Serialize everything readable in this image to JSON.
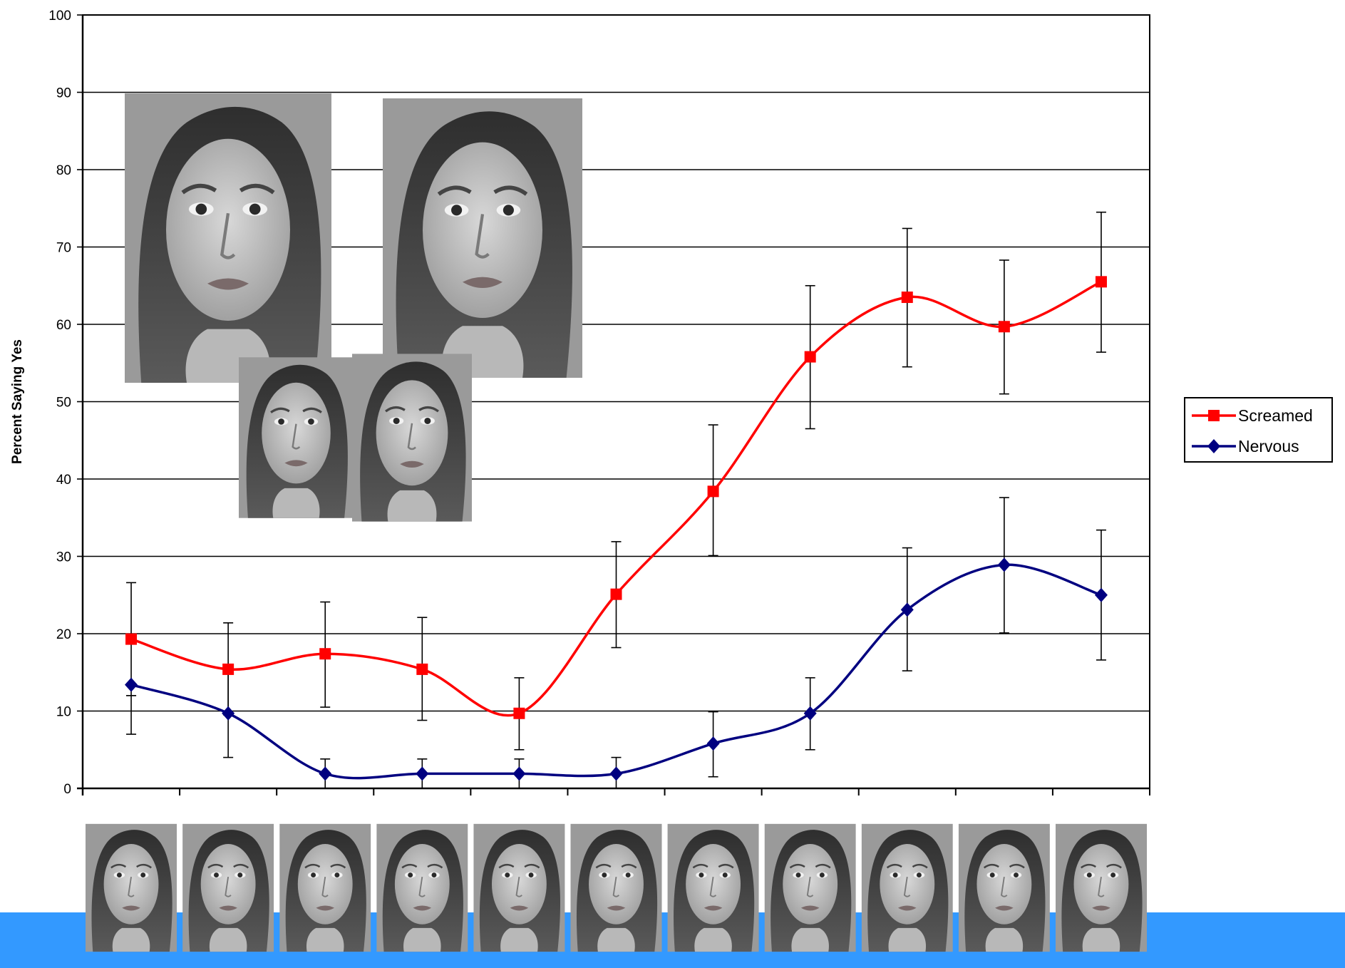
{
  "chart_data": {
    "type": "line",
    "title": "",
    "xlabel": "",
    "ylabel": "Percent Saying Yes",
    "ylim": [
      0,
      100
    ],
    "yticks": [
      0,
      10,
      20,
      30,
      40,
      50,
      60,
      70,
      80,
      90,
      100
    ],
    "x": [
      1,
      2,
      3,
      4,
      5,
      6,
      7,
      8,
      9,
      10,
      11
    ],
    "grid": true,
    "legend_position": "right",
    "series": [
      {
        "name": "Screamed",
        "color": "#ff0000",
        "marker": "square",
        "values": [
          19.3,
          15.4,
          17.4,
          15.4,
          9.7,
          25.1,
          38.4,
          55.8,
          63.5,
          59.7,
          65.5
        ],
        "err_low": [
          12.0,
          9.5,
          10.5,
          8.8,
          5.0,
          18.2,
          30.1,
          46.5,
          54.5,
          51.0,
          56.4
        ],
        "err_high": [
          26.6,
          21.4,
          24.1,
          22.1,
          14.3,
          31.9,
          47.0,
          65.0,
          72.4,
          68.3,
          74.5
        ]
      },
      {
        "name": "Nervous",
        "color": "#000080",
        "marker": "diamond",
        "values": [
          13.4,
          9.7,
          1.9,
          1.9,
          1.9,
          1.9,
          5.8,
          9.7,
          23.1,
          28.9,
          25.0
        ],
        "err_low": [
          7.0,
          4.0,
          0.0,
          0.0,
          0.0,
          0.0,
          1.5,
          5.0,
          15.2,
          20.1,
          16.6
        ],
        "err_high": [
          12.0,
          15.4,
          3.8,
          3.8,
          3.8,
          4.0,
          9.9,
          14.3,
          31.1,
          37.6,
          33.4
        ]
      }
    ]
  },
  "colors": {
    "bottom_bar": "#3399ff",
    "gridline": "#000000",
    "photo_background": "#9a9a9a",
    "photo_skin": "#c8c8c8",
    "photo_hair": "#3a3a3a"
  },
  "images": {
    "inset_large_left": "face-photo",
    "inset_large_right": "face-photo",
    "inset_small_left": "face-photo",
    "inset_small_right": "face-photo",
    "morph_strip": "face-morph-sequence"
  }
}
